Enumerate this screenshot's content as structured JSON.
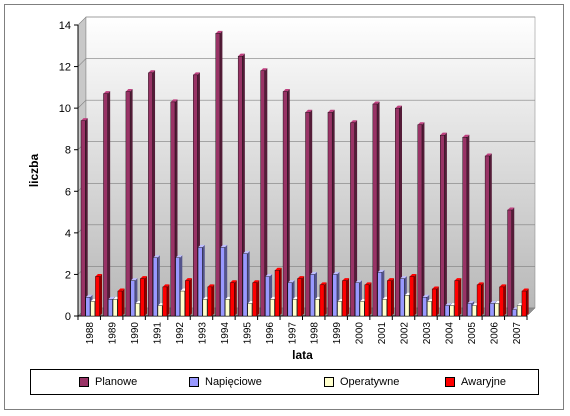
{
  "chart_data": {
    "type": "bar",
    "title": "",
    "xlabel": "lata",
    "ylabel": "liczba",
    "ylim": [
      0,
      14
    ],
    "yticks": [
      0,
      2,
      4,
      6,
      8,
      10,
      12,
      14
    ],
    "grid": true,
    "legend_position": "bottom",
    "categories": [
      "1988",
      "1989",
      "1990",
      "1991",
      "1992",
      "1993",
      "1994",
      "1995",
      "1996",
      "1997",
      "1998",
      "1999",
      "2000",
      "2001",
      "2002",
      "2003",
      "2004",
      "2005",
      "2006",
      "2007"
    ],
    "series": [
      {
        "name": "Planowe",
        "color": "#993366",
        "values": [
          9.4,
          10.7,
          10.8,
          11.7,
          10.3,
          11.6,
          13.6,
          12.5,
          11.8,
          10.8,
          9.8,
          9.8,
          9.3,
          10.2,
          10.0,
          9.2,
          8.7,
          8.6,
          7.7,
          5.1
        ]
      },
      {
        "name": "Napięciowe",
        "color": "#9999ff",
        "values": [
          0.9,
          0.8,
          1.7,
          2.8,
          2.8,
          3.3,
          3.3,
          3.0,
          1.9,
          1.6,
          2.0,
          2.0,
          1.6,
          2.1,
          1.8,
          0.9,
          0.5,
          0.6,
          0.6,
          0.3
        ]
      },
      {
        "name": "Operatywne",
        "color": "#ffffcc",
        "values": [
          0.7,
          0.8,
          0.6,
          0.5,
          1.2,
          0.8,
          0.8,
          0.6,
          0.8,
          0.8,
          0.8,
          0.7,
          0.7,
          0.8,
          1.0,
          0.7,
          0.5,
          0.5,
          0.6,
          0.5
        ]
      },
      {
        "name": "Awaryjne",
        "color": "#ff0000",
        "values": [
          1.9,
          1.2,
          1.8,
          1.4,
          1.7,
          1.4,
          1.6,
          1.6,
          2.2,
          1.8,
          1.5,
          1.7,
          1.5,
          1.7,
          1.9,
          1.3,
          1.7,
          1.5,
          1.4,
          1.2
        ]
      }
    ]
  }
}
